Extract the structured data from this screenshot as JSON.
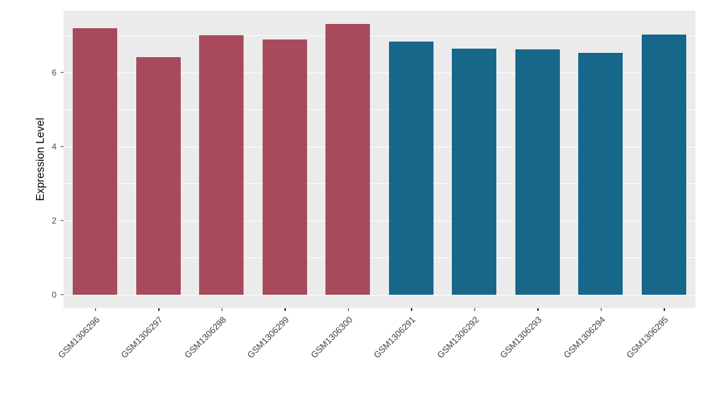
{
  "chart_data": {
    "type": "bar",
    "title": "",
    "xlabel": "",
    "ylabel": "Expression Level",
    "categories": [
      "GSM1306296",
      "GSM1306297",
      "GSM1306298",
      "GSM1306299",
      "GSM1306300",
      "GSM1306291",
      "GSM1306292",
      "GSM1306293",
      "GSM1306294",
      "GSM1306295"
    ],
    "values": [
      7.2,
      6.42,
      7.0,
      6.88,
      7.3,
      6.83,
      6.65,
      6.62,
      6.53,
      7.03
    ],
    "colors": [
      "#A74B5C",
      "#A74B5C",
      "#A74B5C",
      "#A74B5C",
      "#A74B5C",
      "#17678A",
      "#17678A",
      "#17678A",
      "#17678A",
      "#17678A"
    ],
    "group_colors": {
      "red_group": "#A74B5C",
      "blue_group": "#17678A"
    },
    "ylim": [
      -0.37,
      7.67
    ],
    "yticks": [
      0,
      2,
      4,
      6
    ],
    "yticks_minor": [
      1,
      3,
      5,
      7
    ],
    "bar_width": 0.7,
    "panel_bg": "#EBEBEB",
    "grid_color": "#FFFFFF",
    "grid": "on",
    "legend": "none"
  }
}
